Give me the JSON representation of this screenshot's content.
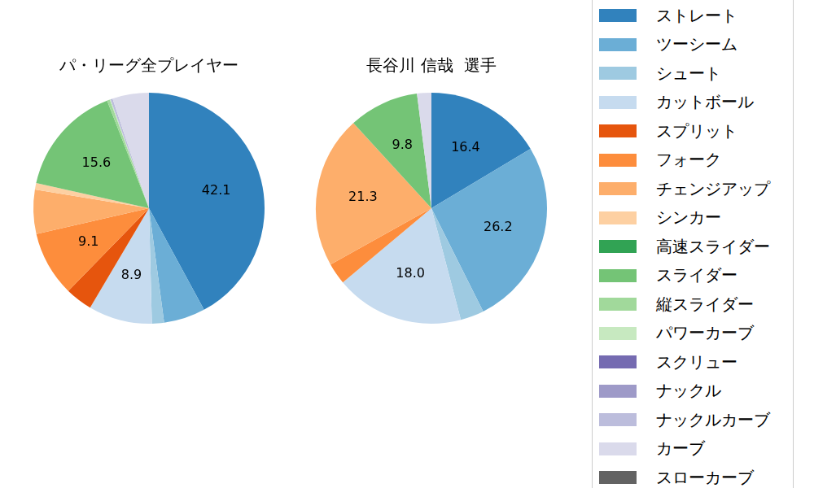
{
  "chart_data": [
    {
      "type": "pie",
      "title": "パ・リーグ全プレイヤー",
      "categories": [
        "ストレート",
        "ツーシーム",
        "シュート",
        "カットボール",
        "スプリット",
        "フォーク",
        "チェンジアップ",
        "シンカー",
        "高速スライダー",
        "スライダー",
        "縦スライダー",
        "パワーカーブ",
        "スクリュー",
        "ナックル",
        "ナックルカーブ",
        "カーブ",
        "スローカーブ"
      ],
      "colors": [
        "#3182bd",
        "#6baed6",
        "#9ecae1",
        "#c6dbef",
        "#e6550d",
        "#fd8d3c",
        "#fdae6b",
        "#fdd0a2",
        "#31a354",
        "#74c476",
        "#a1d99b",
        "#c7e9c0",
        "#756bb1",
        "#9e9ac8",
        "#bcbddc",
        "#dadaeb",
        "#636363"
      ],
      "values": [
        42.1,
        5.8,
        1.7,
        8.9,
        3.8,
        9.1,
        6.2,
        0.9,
        0,
        15.6,
        0.4,
        0.1,
        0,
        0,
        0.3,
        5.1,
        0
      ],
      "value_labels": [
        "42.1",
        null,
        null,
        "8.9",
        null,
        "9.1",
        null,
        null,
        null,
        "15.6",
        null,
        null,
        null,
        null,
        null,
        null,
        null
      ],
      "data_labels": true,
      "legend": "right"
    },
    {
      "type": "pie",
      "title": "長谷川 信哉  選手",
      "categories": [
        "ストレート",
        "ツーシーム",
        "シュート",
        "カットボール",
        "スプリット",
        "フォーク",
        "チェンジアップ",
        "シンカー",
        "高速スライダー",
        "スライダー",
        "縦スライダー",
        "パワーカーブ",
        "スクリュー",
        "ナックル",
        "ナックルカーブ",
        "カーブ",
        "スローカーブ"
      ],
      "colors": [
        "#3182bd",
        "#6baed6",
        "#9ecae1",
        "#c6dbef",
        "#e6550d",
        "#fd8d3c",
        "#fdae6b",
        "#fdd0a2",
        "#31a354",
        "#74c476",
        "#a1d99b",
        "#c7e9c0",
        "#756bb1",
        "#9e9ac8",
        "#bcbddc",
        "#dadaeb",
        "#636363"
      ],
      "values": [
        16.4,
        26.2,
        3.3,
        18.0,
        0,
        3.0,
        21.3,
        0,
        0,
        9.8,
        0,
        0,
        0,
        0,
        0,
        2.0,
        0
      ],
      "value_labels": [
        "16.4",
        "26.2",
        null,
        "18.0",
        null,
        null,
        "21.3",
        null,
        null,
        "9.8",
        null,
        null,
        null,
        null,
        null,
        null,
        null
      ],
      "data_labels": true,
      "legend": "right"
    }
  ]
}
